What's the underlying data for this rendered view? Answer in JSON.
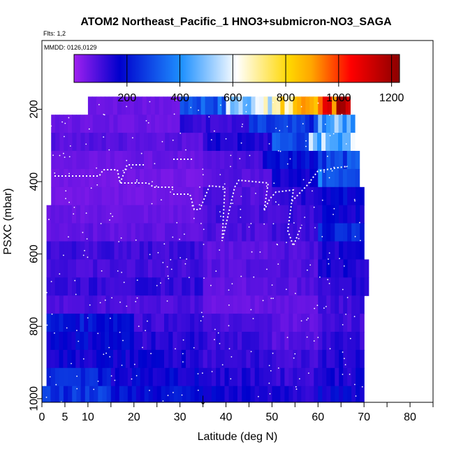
{
  "chart_data": {
    "type": "heatmap",
    "title": "ATOM2 Northeast_Pacific_1 HNO3+submicron-NO3_SAGA",
    "subtitle": "Flts: 1,2",
    "annotation": "MMDD: 0126,0129",
    "xlabel": "Latitude (deg N)",
    "ylabel": "PSXC (mbar)",
    "xlim": [
      0,
      85
    ],
    "ylim": [
      1010,
      10
    ],
    "x_ticks": [
      0,
      5,
      10,
      20,
      30,
      40,
      50,
      60,
      70,
      80
    ],
    "x_minor_ticks": [
      15,
      25,
      35,
      45,
      55,
      65,
      75,
      85
    ],
    "y_ticks": [
      200,
      400,
      600,
      800,
      1000
    ],
    "colorbar": {
      "range": [
        0,
        1230
      ],
      "ticks": [
        200,
        400,
        600,
        800,
        1000,
        1200
      ],
      "colors": [
        "#a020f0",
        "#0000cd",
        "#1e90ff",
        "#ffffff",
        "#ffd700",
        "#ffa500",
        "#ff0000",
        "#8b0000"
      ],
      "stops": [
        0,
        0.14,
        0.33,
        0.5,
        0.66,
        0.73,
        0.85,
        1
      ]
    },
    "marker": {
      "x": 35,
      "y": 1000,
      "label": "↓"
    },
    "rows": [
      {
        "p": 190,
        "cells": [
          [
            10,
            30,
            60
          ],
          [
            30,
            40,
            320
          ],
          [
            40,
            50,
            560
          ],
          [
            50,
            60,
            760
          ],
          [
            60,
            65,
            1000
          ],
          [
            65,
            67,
            1150
          ]
        ]
      },
      {
        "p": 240,
        "cells": [
          [
            2,
            30,
            60
          ],
          [
            30,
            45,
            120
          ],
          [
            45,
            60,
            250
          ],
          [
            60,
            68,
            450
          ]
        ]
      },
      {
        "p": 290,
        "cells": [
          [
            2,
            35,
            80
          ],
          [
            35,
            50,
            140
          ],
          [
            50,
            58,
            300
          ],
          [
            58,
            68,
            500
          ]
        ]
      },
      {
        "p": 340,
        "cells": [
          [
            2,
            35,
            60
          ],
          [
            35,
            48,
            90
          ],
          [
            48,
            60,
            200
          ],
          [
            60,
            69,
            280
          ]
        ]
      },
      {
        "p": 390,
        "cells": [
          [
            2,
            35,
            50
          ],
          [
            35,
            50,
            80
          ],
          [
            50,
            60,
            150
          ],
          [
            60,
            69,
            330
          ]
        ]
      },
      {
        "p": 440,
        "cells": [
          [
            2,
            35,
            50
          ],
          [
            35,
            50,
            90
          ],
          [
            50,
            60,
            130
          ],
          [
            60,
            70,
            180
          ]
        ]
      },
      {
        "p": 490,
        "cells": [
          [
            1,
            35,
            60
          ],
          [
            35,
            50,
            100
          ],
          [
            50,
            60,
            110
          ],
          [
            60,
            70,
            160
          ]
        ]
      },
      {
        "p": 540,
        "cells": [
          [
            1,
            35,
            70
          ],
          [
            35,
            50,
            90
          ],
          [
            50,
            60,
            100
          ],
          [
            60,
            70,
            230
          ]
        ]
      },
      {
        "p": 590,
        "cells": [
          [
            1,
            35,
            110
          ],
          [
            35,
            50,
            70
          ],
          [
            50,
            60,
            90
          ],
          [
            60,
            70,
            140
          ]
        ]
      },
      {
        "p": 640,
        "cells": [
          [
            1,
            35,
            100
          ],
          [
            35,
            50,
            80
          ],
          [
            50,
            60,
            90
          ],
          [
            60,
            71,
            150
          ]
        ]
      },
      {
        "p": 690,
        "cells": [
          [
            1,
            35,
            120
          ],
          [
            35,
            50,
            70
          ],
          [
            50,
            60,
            80
          ],
          [
            60,
            71,
            130
          ]
        ]
      },
      {
        "p": 740,
        "cells": [
          [
            1,
            35,
            90
          ],
          [
            35,
            50,
            60
          ],
          [
            50,
            60,
            70
          ],
          [
            60,
            70,
            110
          ]
        ]
      },
      {
        "p": 790,
        "cells": [
          [
            1,
            20,
            200
          ],
          [
            20,
            35,
            110
          ],
          [
            35,
            50,
            90
          ],
          [
            50,
            60,
            70
          ],
          [
            60,
            70,
            100
          ]
        ]
      },
      {
        "p": 840,
        "cells": [
          [
            1,
            20,
            180
          ],
          [
            20,
            35,
            130
          ],
          [
            35,
            50,
            110
          ],
          [
            50,
            60,
            80
          ],
          [
            60,
            70,
            120
          ]
        ]
      },
      {
        "p": 890,
        "cells": [
          [
            1,
            20,
            160
          ],
          [
            20,
            35,
            150
          ],
          [
            35,
            50,
            120
          ],
          [
            50,
            60,
            110
          ],
          [
            60,
            70,
            140
          ]
        ]
      },
      {
        "p": 940,
        "cells": [
          [
            1,
            15,
            230
          ],
          [
            15,
            35,
            170
          ],
          [
            35,
            50,
            140
          ],
          [
            50,
            60,
            120
          ],
          [
            60,
            70,
            150
          ]
        ]
      },
      {
        "p": 990,
        "cells": [
          [
            0,
            15,
            260
          ],
          [
            15,
            35,
            190
          ],
          [
            35,
            50,
            160
          ],
          [
            50,
            60,
            140
          ],
          [
            60,
            70,
            170
          ]
        ]
      }
    ]
  }
}
